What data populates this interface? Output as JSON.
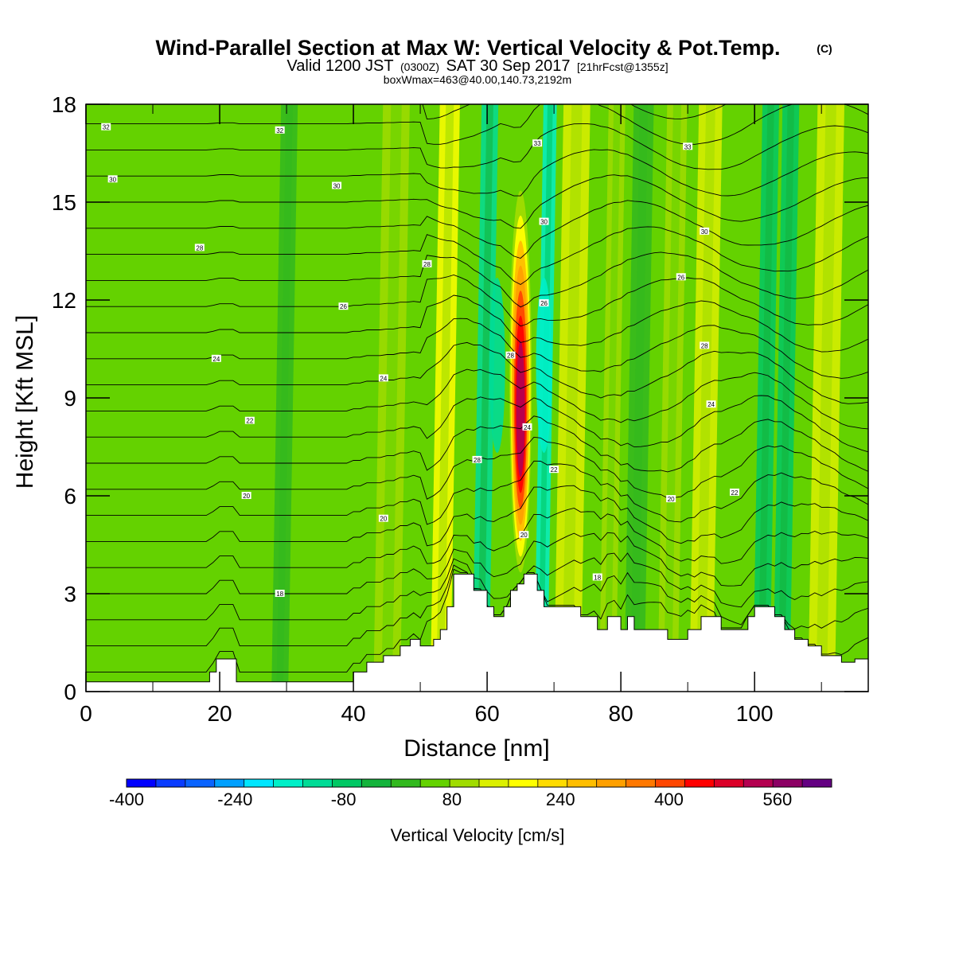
{
  "title": {
    "main": "Wind-Parallel Section at Max W: Vertical Velocity & Pot.Temp.",
    "copyright": "(C)",
    "valid_prefix": "Valid 1200 JST",
    "valid_zulu": "(0300Z)",
    "valid_date": "SAT 30 Sep 2017",
    "forecast": "[21hrFcst@1355z]",
    "box_info": "boxWmax=463@40.00,140.73,2192m"
  },
  "chart_data": {
    "type": "heatmap",
    "xlabel": "Distance [nm]",
    "ylabel": "Height [Kft MSL]",
    "xlim": [
      0,
      117
    ],
    "ylim": [
      0,
      18
    ],
    "x_ticks": [
      0,
      20,
      40,
      60,
      80,
      100
    ],
    "y_ticks": [
      0,
      3,
      6,
      9,
      12,
      15,
      18
    ],
    "x_tick_labels": [
      "0",
      "20",
      "40",
      "60",
      "80",
      "100"
    ],
    "y_tick_labels": [
      "0",
      "3",
      "6",
      "9",
      "12",
      "15",
      "18"
    ],
    "colorbar": {
      "label": "Vertical Velocity [cm/s]",
      "min": -400,
      "max": 640,
      "step": 40,
      "tick_labels": [
        "-400",
        "-240",
        "-80",
        "80",
        "240",
        "400",
        "560"
      ],
      "tick_values": [
        -400,
        -240,
        -80,
        80,
        240,
        400,
        560
      ],
      "colors": [
        "#0000ff",
        "#0a3cff",
        "#0a64ff",
        "#00a0ff",
        "#00e6ff",
        "#00f0c8",
        "#00dc96",
        "#00c864",
        "#14b43c",
        "#32b91e",
        "#64d200",
        "#a0dc00",
        "#dcf000",
        "#ffff00",
        "#ffdc00",
        "#ffbe00",
        "#ffa000",
        "#ff7800",
        "#ff4600",
        "#ff0000",
        "#dc0028",
        "#b40050",
        "#8c0064",
        "#640082"
      ]
    },
    "max_updraft": {
      "distance_nm": 65,
      "height_kft": 9.5,
      "value_cms": 463
    },
    "upslope_bands": [
      {
        "x": 23,
        "w": 3,
        "w_cms": 20
      },
      {
        "x": 29,
        "w": 2.5,
        "w_cms": -20
      },
      {
        "x": 33,
        "w": 3,
        "w_cms": 30
      },
      {
        "x": 45,
        "w": 4,
        "w_cms": 40
      },
      {
        "x": 53,
        "w": 3,
        "w_cms": 120
      },
      {
        "x": 59,
        "w": 2.5,
        "w_cms": -130
      },
      {
        "x": 68,
        "w": 2,
        "w_cms": -170
      },
      {
        "x": 72,
        "w": 4,
        "w_cms": 110
      },
      {
        "x": 78,
        "w": 2.5,
        "w_cms": 60
      },
      {
        "x": 82,
        "w": 3,
        "w_cms": -40
      },
      {
        "x": 87,
        "w": 3,
        "w_cms": 70
      },
      {
        "x": 92,
        "w": 3.5,
        "w_cms": 100
      },
      {
        "x": 101,
        "w": 2.5,
        "w_cms": -90
      },
      {
        "x": 104,
        "w": 2.5,
        "w_cms": -110
      },
      {
        "x": 110,
        "w": 4,
        "w_cms": 90
      }
    ],
    "terrain_kft": [
      [
        0,
        0.3
      ],
      [
        18.5,
        0.3
      ],
      [
        18.5,
        0.6
      ],
      [
        19.5,
        0.6
      ],
      [
        19.5,
        1
      ],
      [
        22.5,
        1
      ],
      [
        22.5,
        0.3
      ],
      [
        40,
        0.3
      ],
      [
        40,
        0.6
      ],
      [
        42,
        0.6
      ],
      [
        42,
        0.9
      ],
      [
        44.5,
        0.9
      ],
      [
        44.5,
        1.1
      ],
      [
        47,
        1.1
      ],
      [
        47,
        1.4
      ],
      [
        48.5,
        1.4
      ],
      [
        48.5,
        1.6
      ],
      [
        50,
        1.6
      ],
      [
        50,
        1.4
      ],
      [
        52,
        1.4
      ],
      [
        52,
        1.6
      ],
      [
        53,
        1.6
      ],
      [
        53,
        1.9
      ],
      [
        54,
        1.9
      ],
      [
        54,
        2.6
      ],
      [
        55,
        2.6
      ],
      [
        55,
        3.6
      ],
      [
        58,
        3.6
      ],
      [
        58,
        3.1
      ],
      [
        60,
        3.1
      ],
      [
        60,
        2.6
      ],
      [
        61,
        2.6
      ],
      [
        61,
        2.3
      ],
      [
        62.5,
        2.3
      ],
      [
        62.5,
        2.6
      ],
      [
        63.5,
        2.6
      ],
      [
        63.5,
        3.1
      ],
      [
        64.5,
        3.1
      ],
      [
        64.5,
        3.3
      ],
      [
        65.5,
        3.3
      ],
      [
        65.5,
        3.6
      ],
      [
        67.5,
        3.6
      ],
      [
        67.5,
        3.1
      ],
      [
        68.5,
        3.1
      ],
      [
        68.5,
        2.6
      ],
      [
        74,
        2.6
      ],
      [
        74,
        2.3
      ],
      [
        76.5,
        2.3
      ],
      [
        76.5,
        1.9
      ],
      [
        78,
        1.9
      ],
      [
        78,
        2.3
      ],
      [
        80,
        2.3
      ],
      [
        80,
        1.9
      ],
      [
        81,
        1.9
      ],
      [
        81,
        2.3
      ],
      [
        82,
        2.3
      ],
      [
        82,
        1.9
      ],
      [
        87,
        1.9
      ],
      [
        87,
        1.6
      ],
      [
        90,
        1.6
      ],
      [
        90,
        1.9
      ],
      [
        92,
        1.9
      ],
      [
        92,
        2.3
      ],
      [
        95,
        2.3
      ],
      [
        95,
        1.9
      ],
      [
        99,
        1.9
      ],
      [
        99,
        2.3
      ],
      [
        100,
        2.3
      ],
      [
        100,
        2.6
      ],
      [
        103,
        2.6
      ],
      [
        103,
        2.3
      ],
      [
        104.5,
        2.3
      ],
      [
        104.5,
        1.9
      ],
      [
        106,
        1.9
      ],
      [
        106,
        1.6
      ],
      [
        108,
        1.6
      ],
      [
        108,
        1.4
      ],
      [
        110,
        1.4
      ],
      [
        110,
        1.1
      ],
      [
        113,
        1.1
      ],
      [
        113,
        0.9
      ],
      [
        115,
        0.9
      ],
      [
        115,
        1
      ],
      [
        117,
        1
      ]
    ],
    "theta_contours": {
      "interval_C": 2,
      "base_low": 14,
      "count": 23,
      "labels": [
        {
          "text": "32",
          "x": 3,
          "y": 17.3
        },
        {
          "text": "32",
          "x": 29,
          "y": 17.2
        },
        {
          "text": "30",
          "x": 4,
          "y": 15.7
        },
        {
          "text": "30",
          "x": 37.5,
          "y": 15.5
        },
        {
          "text": "28",
          "x": 17,
          "y": 13.6
        },
        {
          "text": "26",
          "x": 38.5,
          "y": 11.8
        },
        {
          "text": "24",
          "x": 19.5,
          "y": 10.2
        },
        {
          "text": "24",
          "x": 44.5,
          "y": 9.6
        },
        {
          "text": "22",
          "x": 24.5,
          "y": 8.3
        },
        {
          "text": "20",
          "x": 24,
          "y": 6
        },
        {
          "text": "20",
          "x": 44.5,
          "y": 5.3
        },
        {
          "text": "18",
          "x": 29,
          "y": 3
        },
        {
          "text": "28",
          "x": 51,
          "y": 13.1
        },
        {
          "text": "28",
          "x": 58.5,
          "y": 7.1
        },
        {
          "text": "28",
          "x": 63.5,
          "y": 10.3
        },
        {
          "text": "24",
          "x": 66,
          "y": 8.1
        },
        {
          "text": "20",
          "x": 65.5,
          "y": 4.8
        },
        {
          "text": "33",
          "x": 67.5,
          "y": 16.8
        },
        {
          "text": "30",
          "x": 68.5,
          "y": 14.4
        },
        {
          "text": "26",
          "x": 68.5,
          "y": 11.9
        },
        {
          "text": "22",
          "x": 70,
          "y": 6.8
        },
        {
          "text": "18",
          "x": 76.5,
          "y": 3.5
        },
        {
          "text": "33",
          "x": 90,
          "y": 16.7
        },
        {
          "text": "30",
          "x": 92.5,
          "y": 14.1
        },
        {
          "text": "26",
          "x": 89,
          "y": 12.7
        },
        {
          "text": "28",
          "x": 92.5,
          "y": 10.6
        },
        {
          "text": "24",
          "x": 93.5,
          "y": 8.8
        },
        {
          "text": "20",
          "x": 87.5,
          "y": 5.9
        },
        {
          "text": "22",
          "x": 97,
          "y": 6.1
        }
      ]
    }
  }
}
